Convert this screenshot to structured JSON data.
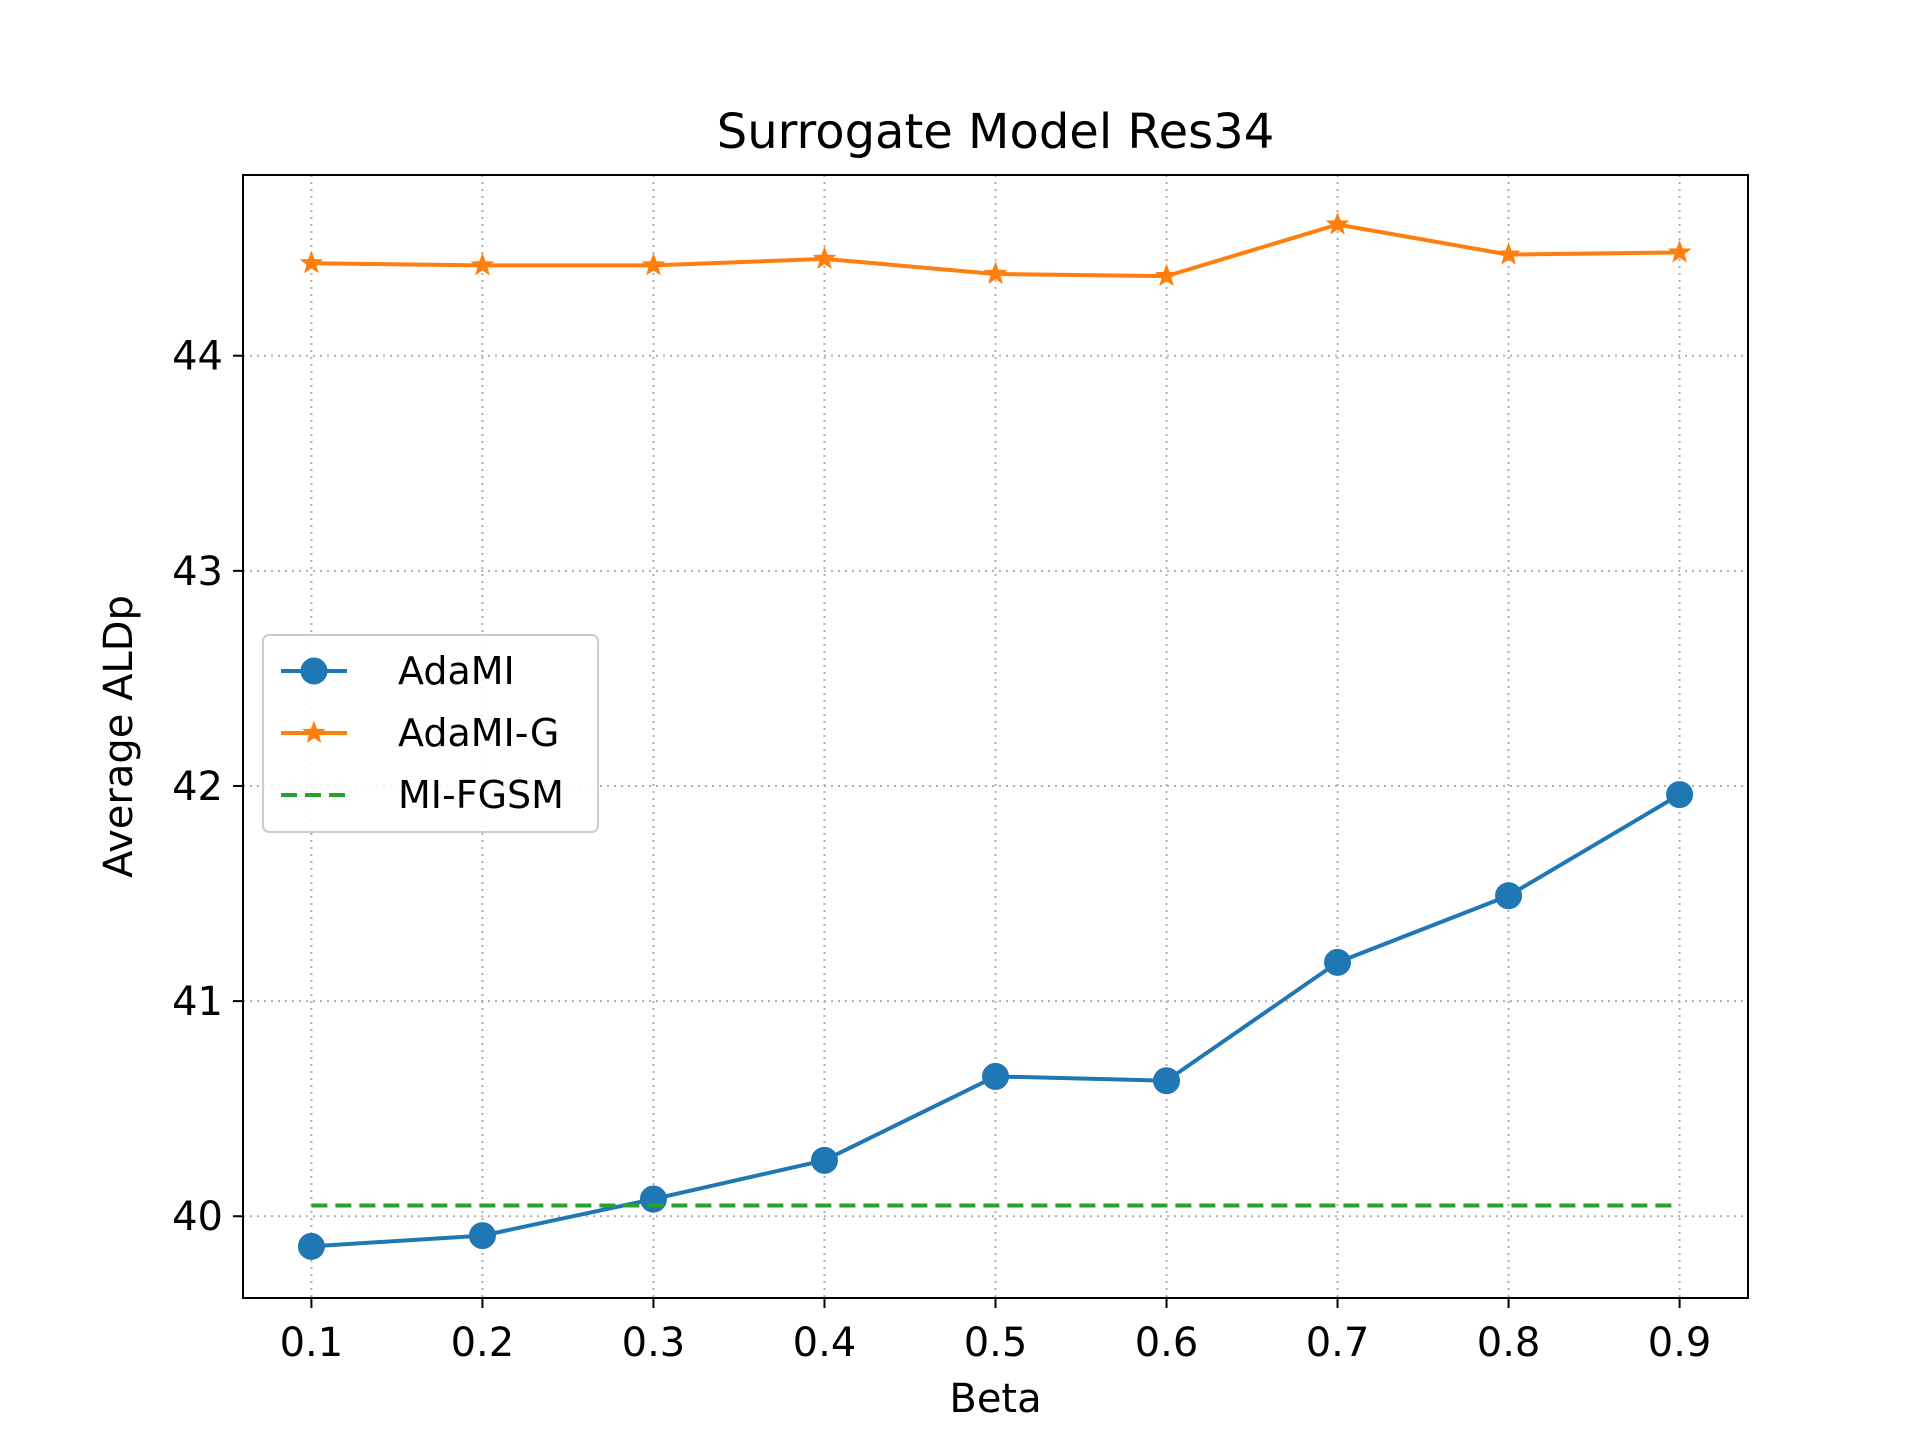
{
  "chart_data": {
    "type": "line",
    "title": "Surrogate Model Res34",
    "xlabel": "Beta",
    "ylabel": "Average ALDp",
    "x": [
      0.1,
      0.2,
      0.3,
      0.4,
      0.5,
      0.6,
      0.7,
      0.8,
      0.9
    ],
    "xticks": [
      "0.1",
      "0.2",
      "0.3",
      "0.4",
      "0.5",
      "0.6",
      "0.7",
      "0.8",
      "0.9"
    ],
    "yticks": [
      40,
      41,
      42,
      43,
      44
    ],
    "ytick_labels": [
      "40",
      "41",
      "42",
      "43",
      "44"
    ],
    "xlim": [
      0.06,
      0.94
    ],
    "ylim": [
      39.62,
      44.84
    ],
    "grid": true,
    "legend_position": "center-left",
    "series": [
      {
        "name": "AdaMI",
        "color": "#1f77b4",
        "marker": "circle",
        "linestyle": "solid",
        "values": [
          39.86,
          39.91,
          40.08,
          40.26,
          40.65,
          40.63,
          41.18,
          41.49,
          41.96
        ]
      },
      {
        "name": "AdaMI-G",
        "color": "#ff7f0e",
        "marker": "star",
        "linestyle": "solid",
        "values": [
          44.43,
          44.42,
          44.42,
          44.45,
          44.38,
          44.37,
          44.61,
          44.47,
          44.48
        ]
      },
      {
        "name": "MI-FGSM",
        "color": "#2ca02c",
        "marker": "none",
        "linestyle": "dashed",
        "values": [
          40.05,
          40.05,
          40.05,
          40.05,
          40.05,
          40.05,
          40.05,
          40.05,
          40.05
        ]
      }
    ]
  }
}
